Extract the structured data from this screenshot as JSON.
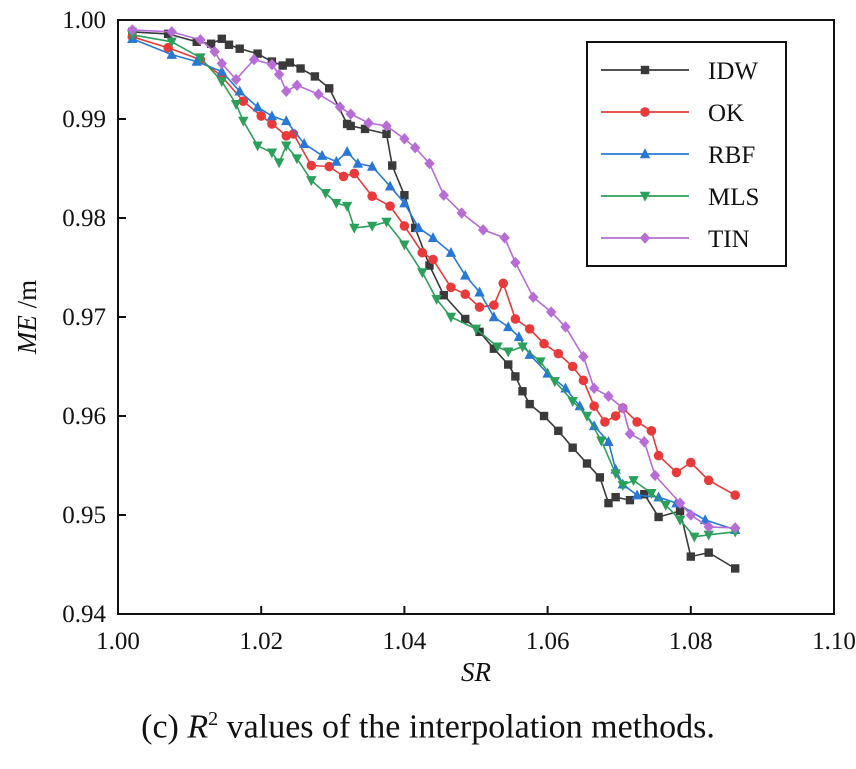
{
  "caption": {
    "prefix": "(c) ",
    "r": "R",
    "sup": "2",
    "rest": " values of the interpolation methods."
  },
  "chart_data": {
    "type": "line",
    "xlabel": "SR",
    "ylabel": "ME",
    "ylabel_unit": " /m",
    "xlim": [
      1.0,
      1.1
    ],
    "ylim": [
      0.94,
      1.0
    ],
    "xticks": [
      "1.00",
      "1.02",
      "1.04",
      "1.06",
      "1.08",
      "1.10"
    ],
    "yticks": [
      "0.94",
      "0.95",
      "0.96",
      "0.97",
      "0.98",
      "0.99",
      "1.00"
    ],
    "grid": false,
    "legend_position": "top-right",
    "series": [
      {
        "name": "IDW",
        "color": "#3a3a3a",
        "marker": "square",
        "x": [
          1.002,
          1.007,
          1.011,
          1.013,
          1.0145,
          1.0155,
          1.017,
          1.0195,
          1.0215,
          1.023,
          1.024,
          1.0255,
          1.0275,
          1.0295,
          1.032,
          1.0325,
          1.0345,
          1.0375,
          1.0383,
          1.04,
          1.0415,
          1.0435,
          1.0455,
          1.0485,
          1.0505,
          1.0525,
          1.0545,
          1.0555,
          1.0565,
          1.0575,
          1.0595,
          1.0615,
          1.0635,
          1.0655,
          1.0673,
          1.0685,
          1.0695,
          1.0715,
          1.0735,
          1.0755,
          1.0785,
          1.08,
          1.0825,
          1.0862
        ],
        "y": [
          0.9988,
          0.9986,
          0.9978,
          0.9976,
          0.9981,
          0.9975,
          0.9971,
          0.9966,
          0.9958,
          0.9954,
          0.9957,
          0.9951,
          0.9943,
          0.9931,
          0.9895,
          0.9893,
          0.989,
          0.9885,
          0.9853,
          0.9823,
          0.979,
          0.9752,
          0.9722,
          0.9698,
          0.9685,
          0.9668,
          0.9652,
          0.964,
          0.9625,
          0.9612,
          0.96,
          0.9585,
          0.9568,
          0.9552,
          0.9538,
          0.9512,
          0.9518,
          0.9515,
          0.9521,
          0.9498,
          0.9504,
          0.9458,
          0.9462,
          0.9446
        ]
      },
      {
        "name": "OK",
        "color": "#e83a3a",
        "marker": "circle",
        "x": [
          1.002,
          1.007,
          1.0115,
          1.0145,
          1.0175,
          1.02,
          1.0215,
          1.0235,
          1.0245,
          1.027,
          1.0295,
          1.0315,
          1.033,
          1.0355,
          1.038,
          1.04,
          1.0425,
          1.044,
          1.0465,
          1.0485,
          1.0505,
          1.0525,
          1.0538,
          1.0555,
          1.0575,
          1.0595,
          1.0615,
          1.0635,
          1.065,
          1.0665,
          1.068,
          1.0695,
          1.0705,
          1.0725,
          1.0745,
          1.0755,
          1.078,
          1.08,
          1.0825,
          1.0862
        ],
        "y": [
          0.9983,
          0.9972,
          0.996,
          0.9943,
          0.9918,
          0.9903,
          0.9895,
          0.9883,
          0.9885,
          0.9853,
          0.9852,
          0.9842,
          0.9845,
          0.9822,
          0.9812,
          0.9792,
          0.9765,
          0.9758,
          0.973,
          0.9723,
          0.971,
          0.9712,
          0.9734,
          0.9698,
          0.9688,
          0.9673,
          0.9663,
          0.965,
          0.9636,
          0.961,
          0.9594,
          0.96,
          0.9608,
          0.9594,
          0.9585,
          0.956,
          0.9543,
          0.9553,
          0.9535,
          0.952
        ]
      },
      {
        "name": "RBF",
        "color": "#2a78d6",
        "marker": "triangle-up",
        "x": [
          1.002,
          1.0075,
          1.011,
          1.0145,
          1.017,
          1.0195,
          1.0215,
          1.0235,
          1.026,
          1.0285,
          1.0305,
          1.032,
          1.0335,
          1.0355,
          1.038,
          1.04,
          1.042,
          1.044,
          1.0465,
          1.0485,
          1.0505,
          1.0525,
          1.0545,
          1.056,
          1.0575,
          1.06,
          1.0625,
          1.0645,
          1.0665,
          1.0685,
          1.0695,
          1.0705,
          1.0725,
          1.0755,
          1.078,
          1.082,
          1.0862
        ],
        "y": [
          0.9981,
          0.9965,
          0.9958,
          0.9948,
          0.9928,
          0.9912,
          0.9903,
          0.9898,
          0.9875,
          0.9863,
          0.9857,
          0.9867,
          0.9855,
          0.9852,
          0.9832,
          0.9815,
          0.979,
          0.978,
          0.9765,
          0.9742,
          0.9725,
          0.97,
          0.969,
          0.968,
          0.9662,
          0.9643,
          0.9628,
          0.961,
          0.959,
          0.9574,
          0.9546,
          0.9531,
          0.952,
          0.9518,
          0.9512,
          0.9495,
          0.9485
        ]
      },
      {
        "name": "MLS",
        "color": "#2aa05a",
        "marker": "triangle-down",
        "x": [
          1.002,
          1.0075,
          1.0115,
          1.0145,
          1.0165,
          1.0175,
          1.0195,
          1.0215,
          1.0225,
          1.0235,
          1.025,
          1.027,
          1.029,
          1.0305,
          1.032,
          1.033,
          1.0355,
          1.0375,
          1.04,
          1.0425,
          1.0445,
          1.0465,
          1.05,
          1.053,
          1.0545,
          1.0565,
          1.059,
          1.061,
          1.0635,
          1.0655,
          1.0675,
          1.0695,
          1.0705,
          1.072,
          1.0745,
          1.0765,
          1.0785,
          1.0805,
          1.0825,
          1.0862
        ],
        "y": [
          0.9985,
          0.9978,
          0.9962,
          0.9938,
          0.9915,
          0.9898,
          0.9873,
          0.9866,
          0.9856,
          0.9873,
          0.986,
          0.9838,
          0.9825,
          0.9815,
          0.9812,
          0.979,
          0.9792,
          0.9796,
          0.9773,
          0.9745,
          0.9718,
          0.97,
          0.9688,
          0.967,
          0.9665,
          0.967,
          0.9655,
          0.9635,
          0.9615,
          0.96,
          0.9575,
          0.9542,
          0.953,
          0.9535,
          0.9522,
          0.951,
          0.9495,
          0.9478,
          0.948,
          0.9483
        ]
      },
      {
        "name": "TIN",
        "color": "#b76cd6",
        "marker": "diamond",
        "x": [
          1.002,
          1.0075,
          1.0115,
          1.0135,
          1.0145,
          1.0165,
          1.019,
          1.0215,
          1.0225,
          1.0235,
          1.025,
          1.028,
          1.031,
          1.0325,
          1.035,
          1.0375,
          1.04,
          1.0415,
          1.0435,
          1.0455,
          1.048,
          1.051,
          1.054,
          1.0555,
          1.058,
          1.0605,
          1.0625,
          1.065,
          1.0665,
          1.0685,
          1.0705,
          1.0715,
          1.0735,
          1.075,
          1.0785,
          1.08,
          1.0825,
          1.0862
        ],
        "y": [
          0.999,
          0.9988,
          0.998,
          0.9968,
          0.9956,
          0.994,
          0.996,
          0.9955,
          0.9945,
          0.9928,
          0.9934,
          0.9925,
          0.9912,
          0.9905,
          0.9896,
          0.9893,
          0.988,
          0.9871,
          0.9855,
          0.9823,
          0.9805,
          0.9788,
          0.978,
          0.9755,
          0.972,
          0.9705,
          0.969,
          0.966,
          0.9628,
          0.962,
          0.9608,
          0.9582,
          0.9574,
          0.954,
          0.9512,
          0.95,
          0.9488,
          0.9487
        ]
      }
    ]
  }
}
